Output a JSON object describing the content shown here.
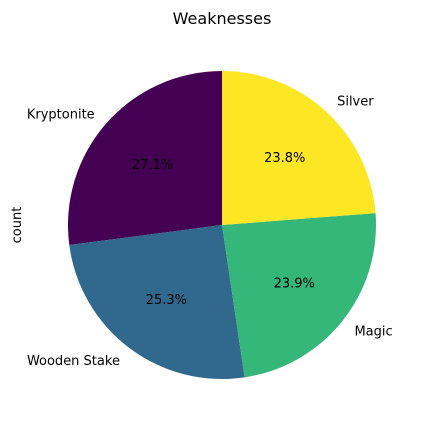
{
  "chart_data": {
    "type": "pie",
    "title": "Weaknesses",
    "ylabel": "count",
    "start_angle_deg": 90,
    "direction": "counterclockwise",
    "slices": [
      {
        "label": "Kryptonite",
        "value": 27.1,
        "pct_label": "27.1%",
        "color": "#440154"
      },
      {
        "label": "Wooden Stake",
        "value": 25.3,
        "pct_label": "25.3%",
        "color": "#31688e"
      },
      {
        "label": "Magic",
        "value": 23.9,
        "pct_label": "23.9%",
        "color": "#35b779"
      },
      {
        "label": "Silver",
        "value": 23.8,
        "pct_label": "23.8%",
        "color": "#fde725"
      }
    ],
    "legend": "none",
    "grid": false
  }
}
